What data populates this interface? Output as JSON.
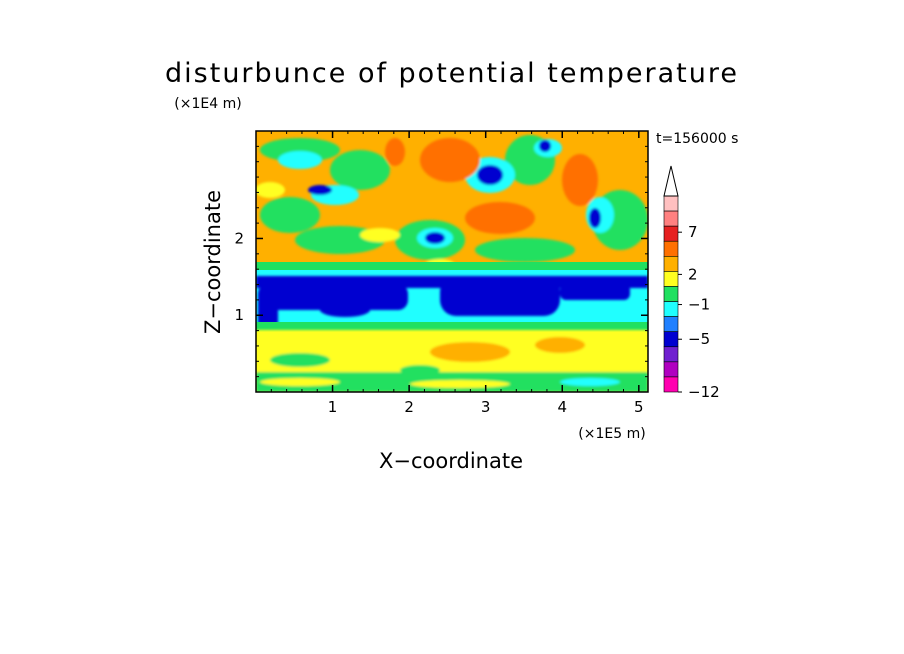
{
  "chart_data": {
    "type": "heatmap",
    "title": "disturbunce of potential temperature",
    "xlabel": "X−coordinate",
    "ylabel": "Z−coordinate",
    "x_unit": "(×1E5 m)",
    "y_unit": "(×1E4 m)",
    "time_label": "t=156000 s",
    "x_ticks": [
      "1",
      "2",
      "3",
      "4",
      "5"
    ],
    "y_ticks": [
      "1",
      "2"
    ],
    "xlim": [
      0,
      5.12
    ],
    "ylim": [
      0,
      3.4
    ],
    "colorbar": {
      "labels": [
        "7",
        "2",
        "−1",
        "−5",
        "−12"
      ],
      "colors": [
        "#ffc0c0",
        "#ff8080",
        "#e62020",
        "#ff7000",
        "#ffb000",
        "#ffff20",
        "#20e060",
        "#20ffff",
        "#2080ff",
        "#0000d0",
        "#7020d0",
        "#b000c0",
        "#ff00b0"
      ],
      "extend_top": true
    },
    "palette": {
      "deep_blue": "#0000d0",
      "blue": "#2080ff",
      "cyan": "#20ffff",
      "green": "#20e060",
      "yellow": "#ffff20",
      "orange": "#ffb000",
      "dark_orange": "#ff7000",
      "red": "#e62020"
    }
  }
}
